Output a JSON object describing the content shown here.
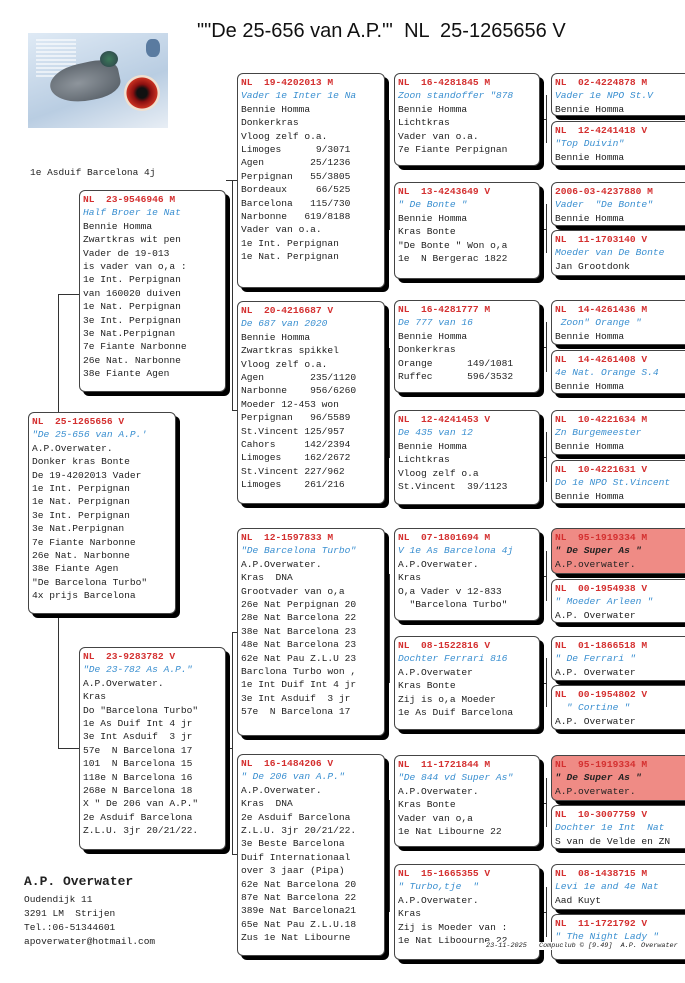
{
  "title": "\"\"De 25-656 van A.P.\"'  NL  25-1265656 V",
  "note": "1e Asduif Barcelona 4j",
  "colors": {
    "ring": "#d43030",
    "name": "#3a8fd0",
    "highlight": "#ef8b85"
  },
  "boxes": [
    {
      "id": "subject",
      "ring": "NL  25-1265656 V",
      "name": "\"De 25-656 van A.P.'",
      "lines": [
        "A.P.Overwater.",
        "Donker kras Bonte",
        "De 19-4202013 Vader",
        "1e Int. Perpignan",
        "1e Nat. Perpignan",
        "3e Int. Perpignan",
        "3e Nat.Perpignan",
        "7e Fiante Narbonne",
        "26e Nat. Narbonne",
        "38e Fiante Agen",
        "\"De Barcelona Turbo\"",
        "4x prijs Barcelona"
      ]
    },
    {
      "id": "s",
      "ring": "NL  23-9546946 M",
      "name": "Half Broer 1e Nat",
      "lines": [
        "Bennie Homma",
        "Zwartkras wit pen",
        "Vader de 19-013",
        "is vader van o,a :",
        "1e Int. Perpignan",
        "van 160020 duiven",
        "1e Nat. Perpignan",
        "3e Int. Perpignan",
        "3e Nat.Perpignan",
        "7e Fiante Narbonne",
        "26e Nat. Narbonne",
        "38e Fiante Agen"
      ]
    },
    {
      "id": "d",
      "ring": "NL  23-9283782 V",
      "name": "\"De 23-782 As A.P.\"",
      "lines": [
        "A.P.Overwater.",
        "Kras",
        "Do \"Barcelona Turbo\"",
        "1e As Duif Int 4 jr",
        "3e Int Asduif  3 jr",
        "57e  N Barcelona 17",
        "101  N Barcelona 15",
        "118e N Barcelona 16",
        "268e N Barcelona 18",
        "X \" De 206 van A.P.\"",
        "2e Asduif Barcelona",
        "Z.L.U. 3jr 20/21/22."
      ]
    },
    {
      "id": "ss",
      "ring": "NL  19-4202013 M",
      "name": "Vader 1e Inter 1e Na",
      "lines": [
        "Bennie Homma",
        "Donkerkras",
        "Vloog zelf o.a.",
        "Limoges      9/3071",
        "Agen        25/1236",
        "Perpignan   55/3805",
        "Bordeaux     66/525",
        "Barcelona   115/730",
        "Narbonne   619/8188",
        "Vader van o.a.",
        "1e Int. Perpignan",
        "1e Nat. Perpignan"
      ]
    },
    {
      "id": "sd",
      "ring": "NL  20-4216687 V",
      "name": "De 687 van 2020",
      "lines": [
        "Bennie Homma",
        "Zwartkras spikkel",
        "Vloog zelf o.a.",
        "Agen        235/1120",
        "Narbonne    956/6260",
        "Moeder 12-453 won",
        "Perpignan   96/5589",
        "St.Vincent 125/957",
        "Cahors     142/2394",
        "Limoges    162/2672",
        "St.Vincent 227/962",
        "Limoges    261/216"
      ]
    },
    {
      "id": "ds",
      "ring": "NL  12-1597833 M",
      "name": "\"De Barcelona Turbo\"",
      "lines": [
        "A.P.Overwater.",
        "Kras  DNA",
        "Grootvader van o,a",
        "26e Nat Perpignan 20",
        "28e Nat Barcelona 22",
        "38e Nat Barcelona 23",
        "48e Nat Barcelona 23",
        "62e Nat Pau Z.L.U 23",
        "Barclona Turbo won ,",
        "1e Int Duif Int 4 jr",
        "3e Int Asduif  3 jr",
        "57e  N Barcelona 17"
      ]
    },
    {
      "id": "dd",
      "ring": "NL  16-1484206 V",
      "name": "\" De 206 van A.P.\"",
      "lines": [
        "A.P.Overwater.",
        "Kras  DNA",
        "2e Asduif Barcelona",
        "Z.L.U. 3jr 20/21/22.",
        "3e Beste Barcelona",
        "Duif Internationaal",
        "over 3 jaar (Pipa)",
        "62e Nat Barcelona 20",
        "87e Nat Barcelona 22",
        "389e Nat Barcelona21",
        "65e Nat Pau Z.L.U.18",
        "Zus 1e Nat Libourne"
      ]
    },
    {
      "id": "sss",
      "ring": "NL  16-4281845 M",
      "name": "Zoon standoffer \"878",
      "lines": [
        "Bennie Homma",
        "Lichtkras",
        "Vader van o.a.",
        "7e Fiante Perpignan"
      ]
    },
    {
      "id": "ssd",
      "ring": "NL  13-4243649 V",
      "name": "\" De Bonte \"",
      "lines": [
        "Bennie Homma",
        "Kras Bonte",
        "\"De Bonte \" Won o,a",
        "1e  N Bergerac 1822"
      ]
    },
    {
      "id": "sds",
      "ring": "NL  16-4281777 M",
      "name": "De 777 van 16",
      "lines": [
        "Bennie Homma",
        "Donkerkras",
        "Orange      149/1081",
        "Ruffec      596/3532"
      ]
    },
    {
      "id": "sdd",
      "ring": "NL  12-4241453 V",
      "name": "De 435 van 12",
      "lines": [
        "Bennie Homma",
        "Lichtkras",
        "Vloog zelf o.a",
        "St.Vincent  39/1123"
      ]
    },
    {
      "id": "dss",
      "ring": "NL  07-1801694 M",
      "name": "V 1e As Barcelona 4j",
      "lines": [
        "A.P.Overwater.",
        "Kras",
        "O,a Vader v 12-833",
        "  \"Barcelona Turbo\""
      ]
    },
    {
      "id": "dsd",
      "ring": "NL  08-1522816 V",
      "name": "Dochter Ferrari 816",
      "lines": [
        "A.P.Overwater",
        "Kras Bonte",
        "Zij is o,a Moeder",
        "1e As Duif Barcelona"
      ]
    },
    {
      "id": "dds",
      "ring": "NL  11-1721844 M",
      "name": "\"De 844 vd Super As\"",
      "lines": [
        "A.P.Overwater.",
        "Kras Bonte",
        "Vader van o,a",
        "1e Nat Libourne 22"
      ]
    },
    {
      "id": "ddd",
      "ring": "NL  15-1665355 V",
      "name": "\" Turbo,tje  \"",
      "lines": [
        "A.P.Overwater.",
        "Kras",
        "Zij is Moeder van :",
        "1e Nat Liboourne 22"
      ]
    },
    {
      "id": "g1",
      "ring": "NL  02-4224878 M",
      "name": "Vader 1e NPO St.V",
      "lines": [
        "Bennie Homma"
      ]
    },
    {
      "id": "g2",
      "ring": "NL  12-4241418 V",
      "name": "\"Top Duivin\"",
      "lines": [
        "Bennie Homma"
      ]
    },
    {
      "id": "g3",
      "ring": "2006-03-4237880 M",
      "name": "Vader  \"De Bonte\"",
      "lines": [
        "Bennie Homma"
      ]
    },
    {
      "id": "g4",
      "ring": "NL  11-1703140 V",
      "name": "Moeder van De Bonte",
      "lines": [
        "Jan Grootdonk"
      ]
    },
    {
      "id": "g5",
      "ring": "NL  14-4261436 M",
      "name": " Zoon\" Orange \"",
      "lines": [
        "Bennie Homma"
      ]
    },
    {
      "id": "g6",
      "ring": "NL  14-4261408 V",
      "name": "4e Nat. Orange S.4",
      "lines": [
        "Bennie Homma"
      ]
    },
    {
      "id": "g7",
      "ring": "NL  10-4221634 M",
      "name": "Zn Burgemeester",
      "lines": [
        "Bennie Homma"
      ]
    },
    {
      "id": "g8",
      "ring": "NL  10-4221631 V",
      "name": "Do 1e NPO St.Vincent",
      "lines": [
        "Bennie Homma"
      ]
    },
    {
      "id": "g9",
      "ring": "NL  95-1919334 M",
      "name": "\" De Super As \"",
      "lines": [
        "A.P.overwater."
      ],
      "highlight": true
    },
    {
      "id": "g10",
      "ring": "NL  00-1954938 V",
      "name": "\" Moeder Arleen \"",
      "lines": [
        "A.P. Overwater"
      ]
    },
    {
      "id": "g11",
      "ring": "NL  01-1866518 M",
      "name": "\" De Ferrari \"",
      "lines": [
        "A.P. Overwater"
      ]
    },
    {
      "id": "g12",
      "ring": "NL  00-1954802 V",
      "name": "  \" Cortine \"",
      "lines": [
        "A.P. Overwater"
      ]
    },
    {
      "id": "g13",
      "ring": "NL  95-1919334 M",
      "name": "\" De Super As \"",
      "lines": [
        "A.P.overwater."
      ],
      "highlight": true
    },
    {
      "id": "g14",
      "ring": "NL  10-3007759 V",
      "name": "Dochter 1e Int  Nat",
      "lines": [
        "S van de Velde en ZN"
      ]
    },
    {
      "id": "g15",
      "ring": "NL  08-1438715 M",
      "name": "Levi 1e and 4e Nat",
      "lines": [
        "Aad Kuyt"
      ]
    },
    {
      "id": "g16",
      "ring": "NL  11-1721792 V",
      "name": "\" The Night Lady \"",
      "lines": []
    }
  ],
  "owner": {
    "name": "A.P. Overwater",
    "lines": [
      "Oudendijk 11",
      "3291 LM  Strijen",
      "Tel.:06-51344601",
      "apoverwater@hotmail.com"
    ]
  },
  "footer": "23-11-2025   Compuclub © [9.49]  A.P. Overwater"
}
